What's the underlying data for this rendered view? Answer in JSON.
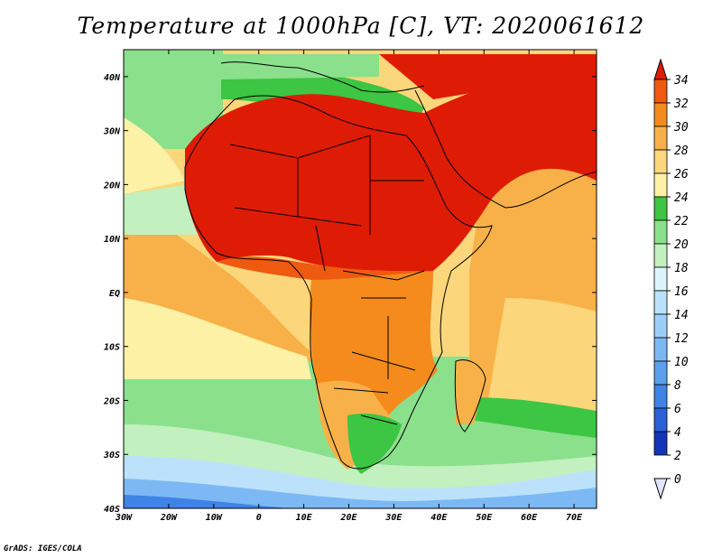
{
  "title": "Temperature at 1000hPa [C], VT: 2020061612",
  "credit": "GrADS: IGES/COLA",
  "map": {
    "lon_range": [
      -30,
      75
    ],
    "lat_range": [
      -40,
      45
    ],
    "lon_labels": [
      {
        "lon": -30,
        "label": "30W"
      },
      {
        "lon": -20,
        "label": "20W"
      },
      {
        "lon": -10,
        "label": "10W"
      },
      {
        "lon": 0,
        "label": "0"
      },
      {
        "lon": 10,
        "label": "10E"
      },
      {
        "lon": 20,
        "label": "20E"
      },
      {
        "lon": 30,
        "label": "30E"
      },
      {
        "lon": 40,
        "label": "40E"
      },
      {
        "lon": 50,
        "label": "50E"
      },
      {
        "lon": 60,
        "label": "60E"
      },
      {
        "lon": 70,
        "label": "70E"
      }
    ],
    "lat_labels": [
      {
        "lat": 40,
        "label": "40N"
      },
      {
        "lat": 30,
        "label": "30N"
      },
      {
        "lat": 20,
        "label": "20N"
      },
      {
        "lat": 10,
        "label": "10N"
      },
      {
        "lat": 0,
        "label": "EQ"
      },
      {
        "lat": -10,
        "label": "10S"
      },
      {
        "lat": -20,
        "label": "20S"
      },
      {
        "lat": -30,
        "label": "30S"
      },
      {
        "lat": -40,
        "label": "40S"
      }
    ]
  },
  "colorbar": {
    "levels": [
      {
        "value": "0",
        "color": "#0a1a78"
      },
      {
        "value": "2",
        "color": "#1435b8"
      },
      {
        "value": "4",
        "color": "#2a5fd8"
      },
      {
        "value": "6",
        "color": "#3f83e6"
      },
      {
        "value": "8",
        "color": "#5aa0ee"
      },
      {
        "value": "10",
        "color": "#7cb9f4"
      },
      {
        "value": "12",
        "color": "#9ccff8"
      },
      {
        "value": "14",
        "color": "#bce2fb"
      },
      {
        "value": "16",
        "color": "#dcf4fa"
      },
      {
        "value": "18",
        "color": "#c2f0bf"
      },
      {
        "value": "20",
        "color": "#8be08c"
      },
      {
        "value": "22",
        "color": "#3dc544"
      },
      {
        "value": "24",
        "color": "#fdf1a6"
      },
      {
        "value": "26",
        "color": "#fbd67a"
      },
      {
        "value": "28",
        "color": "#f8b148"
      },
      {
        "value": "30",
        "color": "#f58b1c"
      },
      {
        "value": "32",
        "color": "#ee5a10"
      },
      {
        "value": "34",
        "color": "#de1c06"
      }
    ]
  }
}
